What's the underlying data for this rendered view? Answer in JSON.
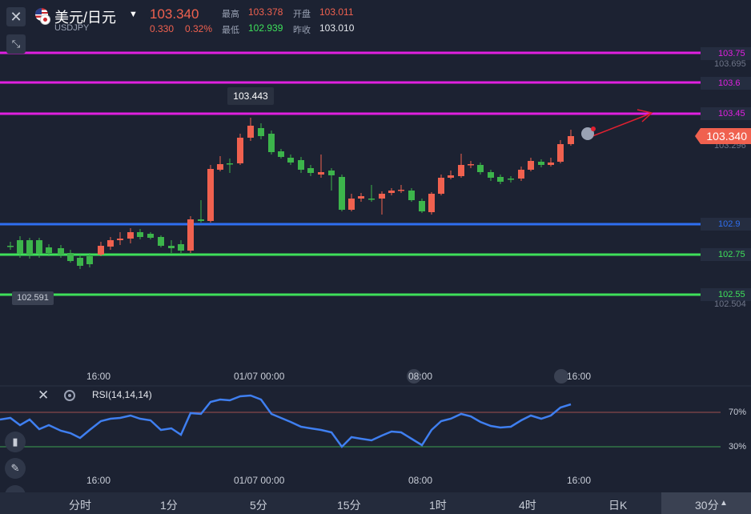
{
  "header": {
    "symbol_name": "美元/日元",
    "symbol_code": "USDJPY",
    "price": "103.340",
    "change_abs": "0.330",
    "change_pct": "0.32%",
    "high_label": "最高",
    "high_value": "103.378",
    "open_label": "开盘",
    "open_value": "103.011",
    "low_label": "最低",
    "low_value": "102.939",
    "prev_label": "昨收",
    "prev_value": "103.010"
  },
  "levels": [
    {
      "label": "103.75",
      "color": "#e020e0"
    },
    {
      "label": "103.6",
      "color": "#e020e0"
    },
    {
      "label": "103.45",
      "color": "#e020e0"
    },
    {
      "label": "102.9",
      "color": "#2f6ff0"
    },
    {
      "label": "102.75",
      "color": "#3ee05a"
    },
    {
      "label": "102.55",
      "color": "#3ee05a"
    }
  ],
  "axis_sub_labels": [
    "103.695",
    "103.296",
    "102.504"
  ],
  "current_price_tag": "103.340",
  "high_marker": "103.443",
  "low_marker": "102.591",
  "time_labels": [
    "16:00",
    "01/07 00:00",
    "08:00",
    "16:00"
  ],
  "rsi": {
    "title": "RSI(14,14,14)",
    "upper": "70%",
    "lower": "30%"
  },
  "timeframes": [
    "分时",
    "1分",
    "5分",
    "15分",
    "1时",
    "4时",
    "日K"
  ],
  "selected_timeframe": "30分",
  "colors": {
    "background": "#1c2232",
    "up": "#f0614f",
    "down": "#3cb44b",
    "rsi_line": "#3f7ff0"
  }
}
